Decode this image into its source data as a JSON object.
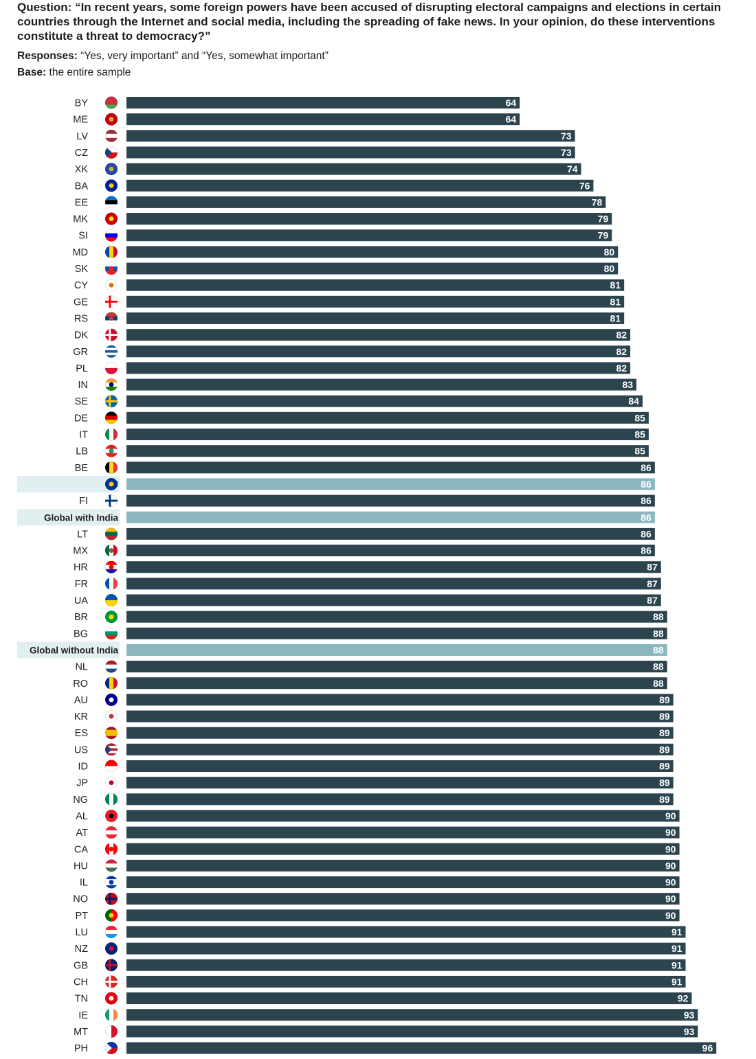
{
  "header": {
    "question_label": "Question:",
    "question_text": "“In recent years, some foreign powers have been accused of disrupting electoral campaigns and elections in certain countries through the Internet and social media, including the spreading of fake news. In your opinion, do these interventions constitute a threat to democracy?”",
    "responses_label": "Responses:",
    "responses_text": "“Yes, very important” and “Yes, somewhat important”",
    "base_label": "Base:",
    "base_text": "the entire sample"
  },
  "colors": {
    "bar": "#2c444e",
    "highlight_bar": "#8ab6c0",
    "highlight_bg": "#e2eff0",
    "label_text": "#1e1e1e",
    "value_text": "#ffffff"
  },
  "chart_data": {
    "type": "bar",
    "orientation": "horizontal",
    "title": "",
    "xlabel": "",
    "ylabel": "",
    "xlim": [
      0,
      100
    ],
    "grid": false,
    "categories": [
      "BY",
      "ME",
      "LV",
      "CZ",
      "XK",
      "BA",
      "EE",
      "MK",
      "SI",
      "MD",
      "SK",
      "CY",
      "GE",
      "RS",
      "DK",
      "GR",
      "PL",
      "IN",
      "SE",
      "DE",
      "IT",
      "LB",
      "BE",
      "EU",
      "FI",
      "Global with India",
      "LT",
      "MX",
      "HR",
      "FR",
      "UA",
      "BR",
      "BG",
      "Global without India",
      "NL",
      "RO",
      "AU",
      "KR",
      "ES",
      "US",
      "ID",
      "JP",
      "NG",
      "AL",
      "AT",
      "CA",
      "HU",
      "IL",
      "NO",
      "PT",
      "LU",
      "NZ",
      "GB",
      "CH",
      "TN",
      "IE",
      "MT",
      "PH"
    ],
    "values": [
      64,
      64,
      73,
      73,
      74,
      76,
      78,
      79,
      79,
      80,
      80,
      81,
      81,
      81,
      82,
      82,
      82,
      83,
      84,
      85,
      85,
      85,
      86,
      86,
      86,
      86,
      86,
      86,
      87,
      87,
      87,
      88,
      88,
      88,
      88,
      88,
      89,
      89,
      89,
      89,
      89,
      89,
      89,
      90,
      90,
      90,
      90,
      90,
      90,
      90,
      91,
      91,
      91,
      91,
      92,
      93,
      93,
      96
    ],
    "highlighted": [
      "EU",
      "Global with India",
      "Global without India"
    ],
    "flag_icons": {
      "BY": {
        "name": "belarus-flag-icon",
        "stripes": [
          "#c8313e",
          "#c8313e",
          "#4aa657"
        ],
        "dir": "h"
      },
      "ME": {
        "name": "montenegro-flag-icon",
        "stripes": [
          "#c40308"
        ],
        "dir": "h",
        "emblem": "#d3ae3b"
      },
      "LV": {
        "name": "latvia-flag-icon",
        "stripes": [
          "#9e3039",
          "#ffffff",
          "#9e3039"
        ],
        "dir": "h"
      },
      "CZ": {
        "name": "czech-flag-icon",
        "stripes": [
          "#ffffff",
          "#d7141a"
        ],
        "dir": "h",
        "tri": "#11457e"
      },
      "XK": {
        "name": "kosovo-flag-icon",
        "stripes": [
          "#244aa5"
        ],
        "dir": "h",
        "emblem": "#d0a650"
      },
      "BA": {
        "name": "bosnia-flag-icon",
        "stripes": [
          "#002395"
        ],
        "dir": "h",
        "emblem": "#fecb00"
      },
      "EE": {
        "name": "estonia-flag-icon",
        "stripes": [
          "#0072ce",
          "#000000",
          "#ffffff"
        ],
        "dir": "h"
      },
      "MK": {
        "name": "north-macedonia-flag-icon",
        "stripes": [
          "#d20000"
        ],
        "dir": "h",
        "emblem": "#ffe600"
      },
      "SI": {
        "name": "slovenia-flag-icon",
        "stripes": [
          "#ffffff",
          "#0000ff",
          "#ff0000"
        ],
        "dir": "h"
      },
      "MD": {
        "name": "moldova-flag-icon",
        "stripes": [
          "#0046ae",
          "#ffd200",
          "#cc092f"
        ],
        "dir": "v"
      },
      "SK": {
        "name": "slovakia-flag-icon",
        "stripes": [
          "#ffffff",
          "#0b4ea2",
          "#ee1c25"
        ],
        "dir": "h",
        "emblem": "#ee1c25"
      },
      "CY": {
        "name": "cyprus-flag-icon",
        "stripes": [
          "#ffffff"
        ],
        "dir": "h",
        "emblem": "#d57800"
      },
      "GE": {
        "name": "georgia-flag-icon",
        "stripes": [
          "#ffffff"
        ],
        "dir": "h",
        "cross": "#ff0000"
      },
      "RS": {
        "name": "serbia-flag-icon",
        "stripes": [
          "#c6363c",
          "#0c4076",
          "#ffffff"
        ],
        "dir": "h",
        "emblem": "#c6363c"
      },
      "DK": {
        "name": "denmark-flag-icon",
        "stripes": [
          "#c8102e"
        ],
        "dir": "h",
        "cross": "#ffffff"
      },
      "GR": {
        "name": "greece-flag-icon",
        "stripes": [
          "#0d5eaf",
          "#ffffff",
          "#0d5eaf",
          "#ffffff",
          "#0d5eaf"
        ],
        "dir": "h"
      },
      "PL": {
        "name": "poland-flag-icon",
        "stripes": [
          "#ffffff",
          "#dc143c"
        ],
        "dir": "h"
      },
      "IN": {
        "name": "india-flag-icon",
        "stripes": [
          "#ff9933",
          "#ffffff",
          "#138808"
        ],
        "dir": "h",
        "emblem": "#000080"
      },
      "SE": {
        "name": "sweden-flag-icon",
        "stripes": [
          "#006aa7"
        ],
        "dir": "h",
        "cross": "#fecc00"
      },
      "DE": {
        "name": "germany-flag-icon",
        "stripes": [
          "#000000",
          "#dd0000",
          "#ffce00"
        ],
        "dir": "h"
      },
      "IT": {
        "name": "italy-flag-icon",
        "stripes": [
          "#009246",
          "#ffffff",
          "#ce2b37"
        ],
        "dir": "v"
      },
      "LB": {
        "name": "lebanon-flag-icon",
        "stripes": [
          "#ed1c24",
          "#ffffff",
          "#ed1c24"
        ],
        "dir": "h",
        "emblem": "#00a651"
      },
      "BE": {
        "name": "belgium-flag-icon",
        "stripes": [
          "#000000",
          "#fdda24",
          "#ef3340"
        ],
        "dir": "v"
      },
      "EU": {
        "name": "eu-flag-icon",
        "stripes": [
          "#003399"
        ],
        "dir": "h",
        "emblem": "#ffcc00"
      },
      "FI": {
        "name": "finland-flag-icon",
        "stripes": [
          "#ffffff"
        ],
        "dir": "h",
        "cross": "#003580"
      },
      "LT": {
        "name": "lithuania-flag-icon",
        "stripes": [
          "#fdb913",
          "#006a44",
          "#c1272d"
        ],
        "dir": "h"
      },
      "MX": {
        "name": "mexico-flag-icon",
        "stripes": [
          "#006847",
          "#ffffff",
          "#ce1126"
        ],
        "dir": "v",
        "emblem": "#8c5a2b"
      },
      "HR": {
        "name": "croatia-flag-icon",
        "stripes": [
          "#ff0000",
          "#ffffff",
          "#171796"
        ],
        "dir": "h",
        "emblem": "#ff0000"
      },
      "FR": {
        "name": "france-flag-icon",
        "stripes": [
          "#0055a4",
          "#ffffff",
          "#ef4135"
        ],
        "dir": "v"
      },
      "UA": {
        "name": "ukraine-flag-icon",
        "stripes": [
          "#0057b7",
          "#ffd700"
        ],
        "dir": "h"
      },
      "BR": {
        "name": "brazil-flag-icon",
        "stripes": [
          "#009c3b"
        ],
        "dir": "h",
        "emblem": "#ffdf00"
      },
      "BG": {
        "name": "bulgaria-flag-icon",
        "stripes": [
          "#ffffff",
          "#00966e",
          "#d62612"
        ],
        "dir": "h"
      },
      "NL": {
        "name": "netherlands-flag-icon",
        "stripes": [
          "#ae1c28",
          "#ffffff",
          "#21468b"
        ],
        "dir": "h"
      },
      "RO": {
        "name": "romania-flag-icon",
        "stripes": [
          "#002b7f",
          "#fcd116",
          "#ce1126"
        ],
        "dir": "v"
      },
      "AU": {
        "name": "australia-flag-icon",
        "stripes": [
          "#00008b"
        ],
        "dir": "h",
        "emblem": "#ffffff"
      },
      "KR": {
        "name": "south-korea-flag-icon",
        "stripes": [
          "#ffffff"
        ],
        "dir": "h",
        "emblem": "#cd2e3a"
      },
      "ES": {
        "name": "spain-flag-icon",
        "stripes": [
          "#aa151b",
          "#f1bf00",
          "#f1bf00",
          "#aa151b"
        ],
        "dir": "h"
      },
      "US": {
        "name": "usa-flag-icon",
        "stripes": [
          "#b22234",
          "#ffffff",
          "#b22234",
          "#ffffff",
          "#b22234"
        ],
        "dir": "h",
        "tri": "#3c3b6e"
      },
      "ID": {
        "name": "indonesia-flag-icon",
        "stripes": [
          "#ff0000",
          "#ffffff"
        ],
        "dir": "h"
      },
      "JP": {
        "name": "japan-flag-icon",
        "stripes": [
          "#ffffff"
        ],
        "dir": "h",
        "emblem": "#bc002d"
      },
      "NG": {
        "name": "nigeria-flag-icon",
        "stripes": [
          "#008751",
          "#ffffff",
          "#008751"
        ],
        "dir": "v"
      },
      "AL": {
        "name": "albania-flag-icon",
        "stripes": [
          "#e41e20"
        ],
        "dir": "h",
        "emblem": "#000000"
      },
      "AT": {
        "name": "austria-flag-icon",
        "stripes": [
          "#ed2939",
          "#ffffff",
          "#ed2939"
        ],
        "dir": "h"
      },
      "CA": {
        "name": "canada-flag-icon",
        "stripes": [
          "#ff0000",
          "#ffffff",
          "#ff0000"
        ],
        "dir": "v",
        "emblem": "#ff0000"
      },
      "HU": {
        "name": "hungary-flag-icon",
        "stripes": [
          "#ce2939",
          "#ffffff",
          "#477050"
        ],
        "dir": "h"
      },
      "IL": {
        "name": "israel-flag-icon",
        "stripes": [
          "#0038b8",
          "#ffffff",
          "#ffffff",
          "#0038b8"
        ],
        "dir": "h",
        "emblem": "#0038b8"
      },
      "NO": {
        "name": "norway-flag-icon",
        "stripes": [
          "#ba0c2f"
        ],
        "dir": "h",
        "cross": "#00205b"
      },
      "PT": {
        "name": "portugal-flag-icon",
        "stripes": [
          "#006600",
          "#ff0000"
        ],
        "dir": "v",
        "emblem": "#ffcc00"
      },
      "LU": {
        "name": "luxembourg-flag-icon",
        "stripes": [
          "#ed2939",
          "#ffffff",
          "#00a1de"
        ],
        "dir": "h"
      },
      "NZ": {
        "name": "new-zealand-flag-icon",
        "stripes": [
          "#00247d"
        ],
        "dir": "h",
        "emblem": "#cc142b"
      },
      "GB": {
        "name": "uk-flag-icon",
        "stripes": [
          "#012169"
        ],
        "dir": "h",
        "cross": "#c8102e"
      },
      "CH": {
        "name": "switzerland-flag-icon",
        "stripes": [
          "#da291c"
        ],
        "dir": "h",
        "cross": "#ffffff"
      },
      "TN": {
        "name": "tunisia-flag-icon",
        "stripes": [
          "#e70013"
        ],
        "dir": "h",
        "emblem": "#ffffff"
      },
      "IE": {
        "name": "ireland-flag-icon",
        "stripes": [
          "#169b62",
          "#ffffff",
          "#ff883e"
        ],
        "dir": "v"
      },
      "MT": {
        "name": "malta-flag-icon",
        "stripes": [
          "#ffffff",
          "#cf142b"
        ],
        "dir": "v"
      },
      "PH": {
        "name": "philippines-flag-icon",
        "stripes": [
          "#0038a8",
          "#ce1126"
        ],
        "dir": "h",
        "tri": "#ffffff"
      }
    }
  }
}
